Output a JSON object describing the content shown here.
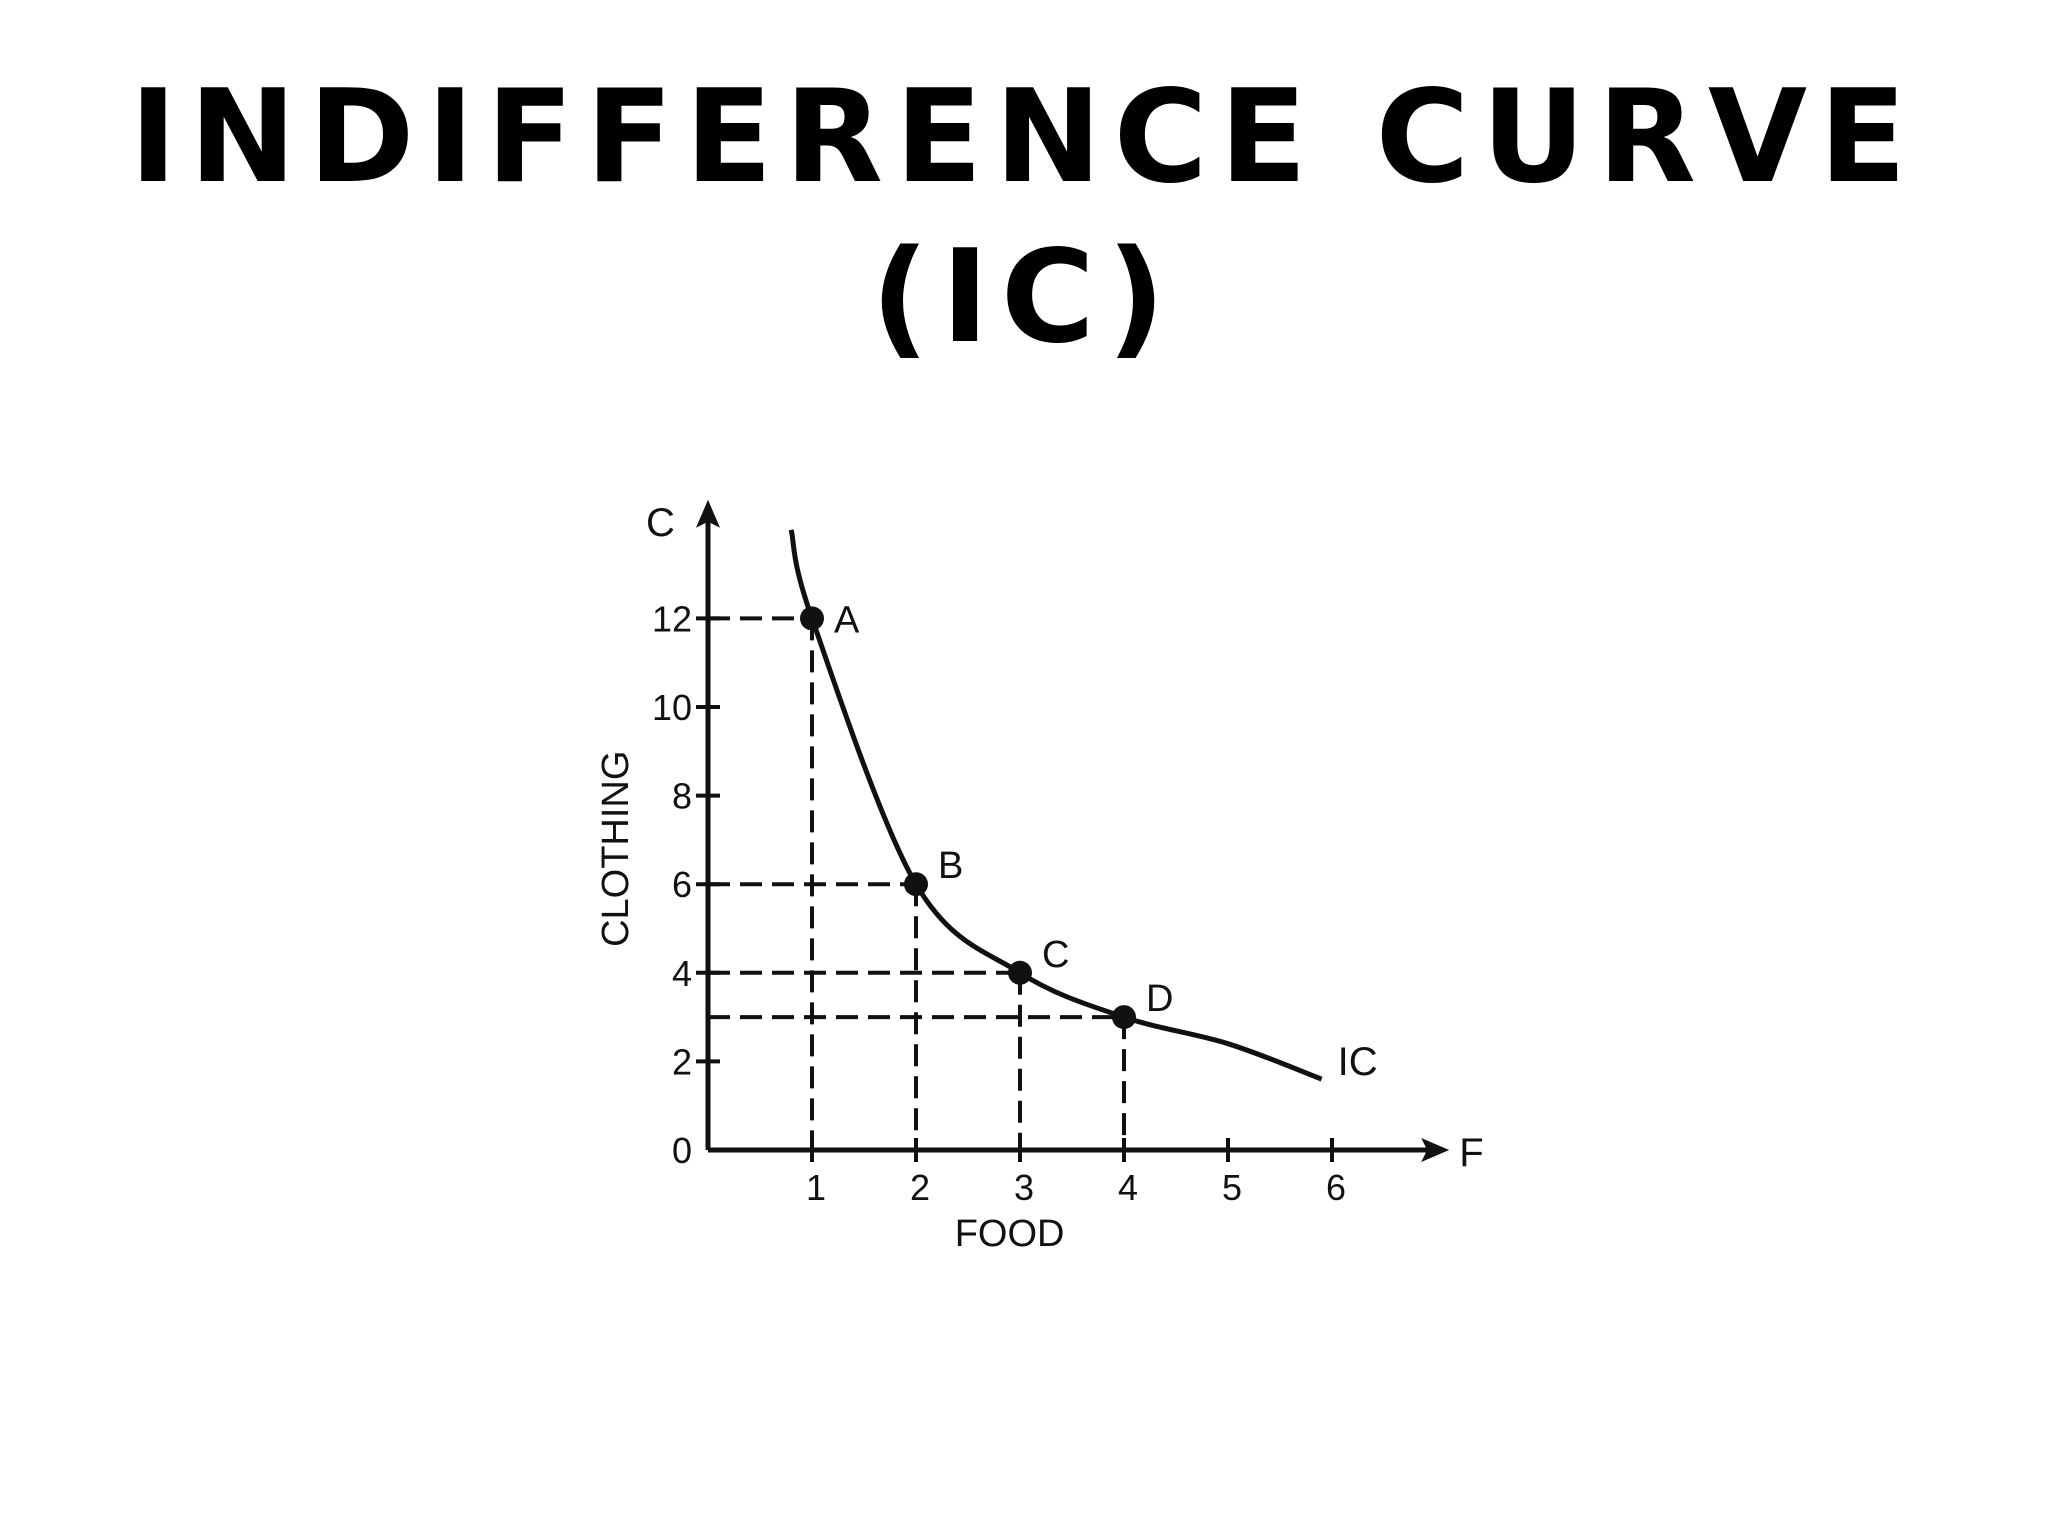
{
  "slide": {
    "title_line1": "INDIFFERENCE CURVE",
    "title_line2": "(IC)"
  },
  "chart_data": {
    "type": "line",
    "xlabel": "FOOD",
    "ylabel": "CLOTHING",
    "x_axis_symbol": "F",
    "y_axis_symbol": "C",
    "x_ticks": [
      1,
      2,
      3,
      4,
      5,
      6
    ],
    "y_ticks": [
      0,
      2,
      4,
      6,
      8,
      10,
      12
    ],
    "xlim": [
      0,
      6.8
    ],
    "ylim": [
      0,
      14
    ],
    "grid": false,
    "legend": "none",
    "curve_label": "IC",
    "points": [
      {
        "label": "A",
        "x": 1,
        "y": 12
      },
      {
        "label": "B",
        "x": 2,
        "y": 6
      },
      {
        "label": "C",
        "x": 3,
        "y": 4
      },
      {
        "label": "D",
        "x": 4,
        "y": 3
      }
    ],
    "series": [
      {
        "x": [
          0.8,
          1,
          2,
          3,
          4,
          5,
          5.9
        ],
        "y": [
          14,
          12,
          6,
          4,
          3,
          2.4,
          1.6
        ]
      }
    ]
  }
}
